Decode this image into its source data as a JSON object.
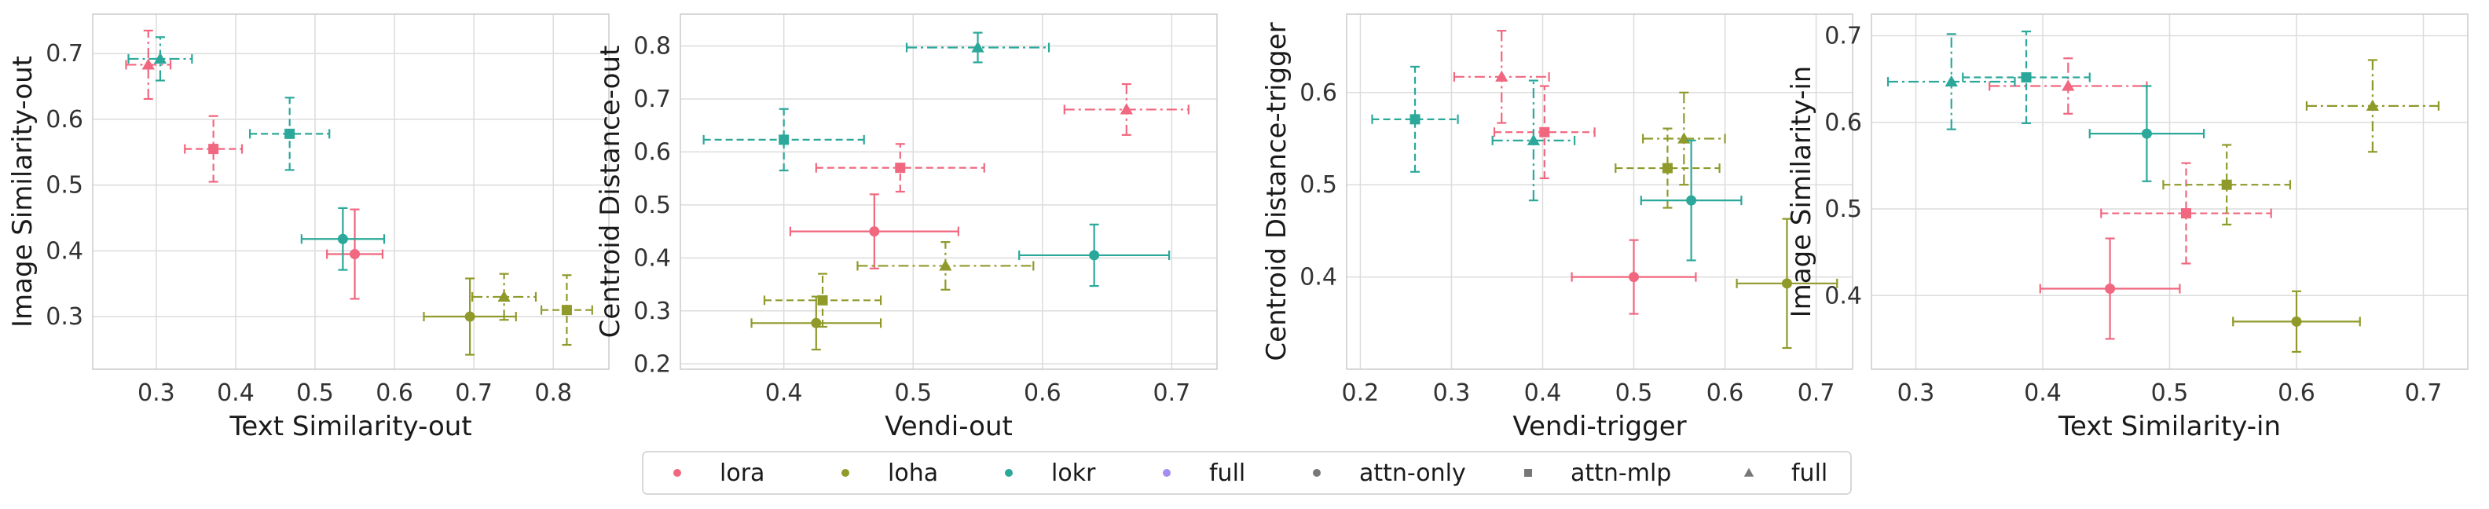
{
  "colors": {
    "lora": "#f0677f",
    "loha": "#8f9a2a",
    "lokr": "#2ba89a",
    "full": "#a48cf0",
    "grey": "#777777"
  },
  "legend": [
    {
      "label": "lora",
      "kind": "color",
      "color": "#f0677f"
    },
    {
      "label": "loha",
      "kind": "color",
      "color": "#8f9a2a"
    },
    {
      "label": "lokr",
      "kind": "color",
      "color": "#2ba89a"
    },
    {
      "label": "full",
      "kind": "color",
      "color": "#a48cf0"
    },
    {
      "label": "attn-only",
      "kind": "marker",
      "marker": "circle"
    },
    {
      "label": "attn-mlp",
      "kind": "marker",
      "marker": "square"
    },
    {
      "label": "full",
      "kind": "marker",
      "marker": "triangle"
    }
  ],
  "chart_data": [
    {
      "type": "scatter",
      "xlabel": "Text Similarity-out",
      "ylabel": "Image Similarity-out",
      "xlim": [
        0.22,
        0.87
      ],
      "ylim": [
        0.22,
        0.76
      ],
      "xticks": [
        "0.3",
        "0.4",
        "0.5",
        "0.6",
        "0.7",
        "0.8"
      ],
      "yticks": [
        "0.3",
        "0.4",
        "0.5",
        "0.6",
        "0.7"
      ],
      "points": [
        {
          "method": "lora",
          "variant": "attn-only",
          "x": 0.55,
          "y": 0.395,
          "xerr": 0.035,
          "yerr": 0.068
        },
        {
          "method": "lora",
          "variant": "attn-mlp",
          "x": 0.372,
          "y": 0.555,
          "xerr": 0.036,
          "yerr": 0.05
        },
        {
          "method": "lora",
          "variant": "full",
          "x": 0.29,
          "y": 0.683,
          "xerr": 0.028,
          "yerr": 0.052
        },
        {
          "method": "loha",
          "variant": "attn-only",
          "x": 0.695,
          "y": 0.3,
          "xerr": 0.058,
          "yerr": 0.058
        },
        {
          "method": "loha",
          "variant": "attn-mlp",
          "x": 0.817,
          "y": 0.31,
          "xerr": 0.032,
          "yerr": 0.053
        },
        {
          "method": "loha",
          "variant": "full",
          "x": 0.738,
          "y": 0.33,
          "xerr": 0.04,
          "yerr": 0.035
        },
        {
          "method": "lokr",
          "variant": "attn-only",
          "x": 0.535,
          "y": 0.418,
          "xerr": 0.052,
          "yerr": 0.047
        },
        {
          "method": "lokr",
          "variant": "attn-mlp",
          "x": 0.468,
          "y": 0.578,
          "xerr": 0.05,
          "yerr": 0.055
        },
        {
          "method": "lokr",
          "variant": "full",
          "x": 0.305,
          "y": 0.692,
          "xerr": 0.04,
          "yerr": 0.033
        }
      ]
    },
    {
      "type": "scatter",
      "xlabel": "Vendi-out",
      "ylabel": "Centroid Distance-out",
      "xlim": [
        0.32,
        0.735
      ],
      "ylim": [
        0.19,
        0.86
      ],
      "xticks": [
        "0.4",
        "0.5",
        "0.6",
        "0.7"
      ],
      "yticks": [
        "0.2",
        "0.3",
        "0.4",
        "0.5",
        "0.6",
        "0.7",
        "0.8"
      ],
      "points": [
        {
          "method": "lora",
          "variant": "attn-only",
          "x": 0.47,
          "y": 0.45,
          "xerr": 0.065,
          "yerr": 0.07
        },
        {
          "method": "lora",
          "variant": "attn-mlp",
          "x": 0.49,
          "y": 0.57,
          "xerr": 0.065,
          "yerr": 0.045
        },
        {
          "method": "lora",
          "variant": "full",
          "x": 0.665,
          "y": 0.68,
          "xerr": 0.048,
          "yerr": 0.048
        },
        {
          "method": "loha",
          "variant": "attn-only",
          "x": 0.425,
          "y": 0.277,
          "xerr": 0.05,
          "yerr": 0.05
        },
        {
          "method": "loha",
          "variant": "attn-mlp",
          "x": 0.43,
          "y": 0.32,
          "xerr": 0.045,
          "yerr": 0.05
        },
        {
          "method": "loha",
          "variant": "full",
          "x": 0.525,
          "y": 0.385,
          "xerr": 0.068,
          "yerr": 0.045
        },
        {
          "method": "lokr",
          "variant": "attn-only",
          "x": 0.64,
          "y": 0.405,
          "xerr": 0.058,
          "yerr": 0.058
        },
        {
          "method": "lokr",
          "variant": "attn-mlp",
          "x": 0.4,
          "y": 0.623,
          "xerr": 0.062,
          "yerr": 0.058
        },
        {
          "method": "lokr",
          "variant": "full",
          "x": 0.55,
          "y": 0.797,
          "xerr": 0.055,
          "yerr": 0.028
        }
      ]
    },
    {
      "type": "scatter",
      "xlabel": "Vendi-trigger",
      "ylabel": "Centroid Distance-trigger",
      "xlim": [
        0.185,
        0.74
      ],
      "ylim": [
        0.3,
        0.685
      ],
      "xticks": [
        "0.2",
        "0.3",
        "0.4",
        "0.5",
        "0.6",
        "0.7"
      ],
      "yticks": [
        "0.4",
        "0.5",
        "0.6"
      ],
      "points": [
        {
          "method": "lora",
          "variant": "attn-only",
          "x": 0.5,
          "y": 0.4,
          "xerr": 0.068,
          "yerr": 0.04
        },
        {
          "method": "lora",
          "variant": "attn-mlp",
          "x": 0.402,
          "y": 0.557,
          "xerr": 0.055,
          "yerr": 0.05
        },
        {
          "method": "lora",
          "variant": "full",
          "x": 0.355,
          "y": 0.617,
          "xerr": 0.052,
          "yerr": 0.05
        },
        {
          "method": "loha",
          "variant": "attn-only",
          "x": 0.668,
          "y": 0.393,
          "xerr": 0.055,
          "yerr": 0.07
        },
        {
          "method": "loha",
          "variant": "attn-mlp",
          "x": 0.537,
          "y": 0.518,
          "xerr": 0.057,
          "yerr": 0.043
        },
        {
          "method": "loha",
          "variant": "full",
          "x": 0.555,
          "y": 0.55,
          "xerr": 0.045,
          "yerr": 0.05
        },
        {
          "method": "lokr",
          "variant": "attn-only",
          "x": 0.563,
          "y": 0.483,
          "xerr": 0.055,
          "yerr": 0.065
        },
        {
          "method": "lokr",
          "variant": "attn-mlp",
          "x": 0.26,
          "y": 0.571,
          "xerr": 0.047,
          "yerr": 0.057
        },
        {
          "method": "lokr",
          "variant": "full",
          "x": 0.39,
          "y": 0.548,
          "xerr": 0.045,
          "yerr": 0.065
        }
      ]
    },
    {
      "type": "scatter",
      "xlabel": "Text Similarity-in",
      "ylabel": "Image Similarity-in",
      "xlim": [
        0.265,
        0.735
      ],
      "ylim": [
        0.315,
        0.725
      ],
      "xticks": [
        "0.3",
        "0.4",
        "0.5",
        "0.6",
        "0.7"
      ],
      "yticks": [
        "0.4",
        "0.5",
        "0.6",
        "0.7"
      ],
      "points": [
        {
          "method": "lora",
          "variant": "attn-only",
          "x": 0.453,
          "y": 0.408,
          "xerr": 0.055,
          "yerr": 0.058
        },
        {
          "method": "lora",
          "variant": "attn-mlp",
          "x": 0.513,
          "y": 0.495,
          "xerr": 0.067,
          "yerr": 0.058
        },
        {
          "method": "lora",
          "variant": "full",
          "x": 0.42,
          "y": 0.642,
          "xerr": 0.062,
          "yerr": 0.032
        },
        {
          "method": "loha",
          "variant": "attn-only",
          "x": 0.6,
          "y": 0.37,
          "xerr": 0.05,
          "yerr": 0.035
        },
        {
          "method": "loha",
          "variant": "attn-mlp",
          "x": 0.545,
          "y": 0.528,
          "xerr": 0.05,
          "yerr": 0.046
        },
        {
          "method": "loha",
          "variant": "full",
          "x": 0.66,
          "y": 0.619,
          "xerr": 0.052,
          "yerr": 0.053
        },
        {
          "method": "lokr",
          "variant": "attn-only",
          "x": 0.482,
          "y": 0.587,
          "xerr": 0.045,
          "yerr": 0.055
        },
        {
          "method": "lokr",
          "variant": "attn-mlp",
          "x": 0.387,
          "y": 0.652,
          "xerr": 0.05,
          "yerr": 0.053
        },
        {
          "method": "lokr",
          "variant": "full",
          "x": 0.328,
          "y": 0.647,
          "xerr": 0.05,
          "yerr": 0.055
        }
      ]
    }
  ]
}
